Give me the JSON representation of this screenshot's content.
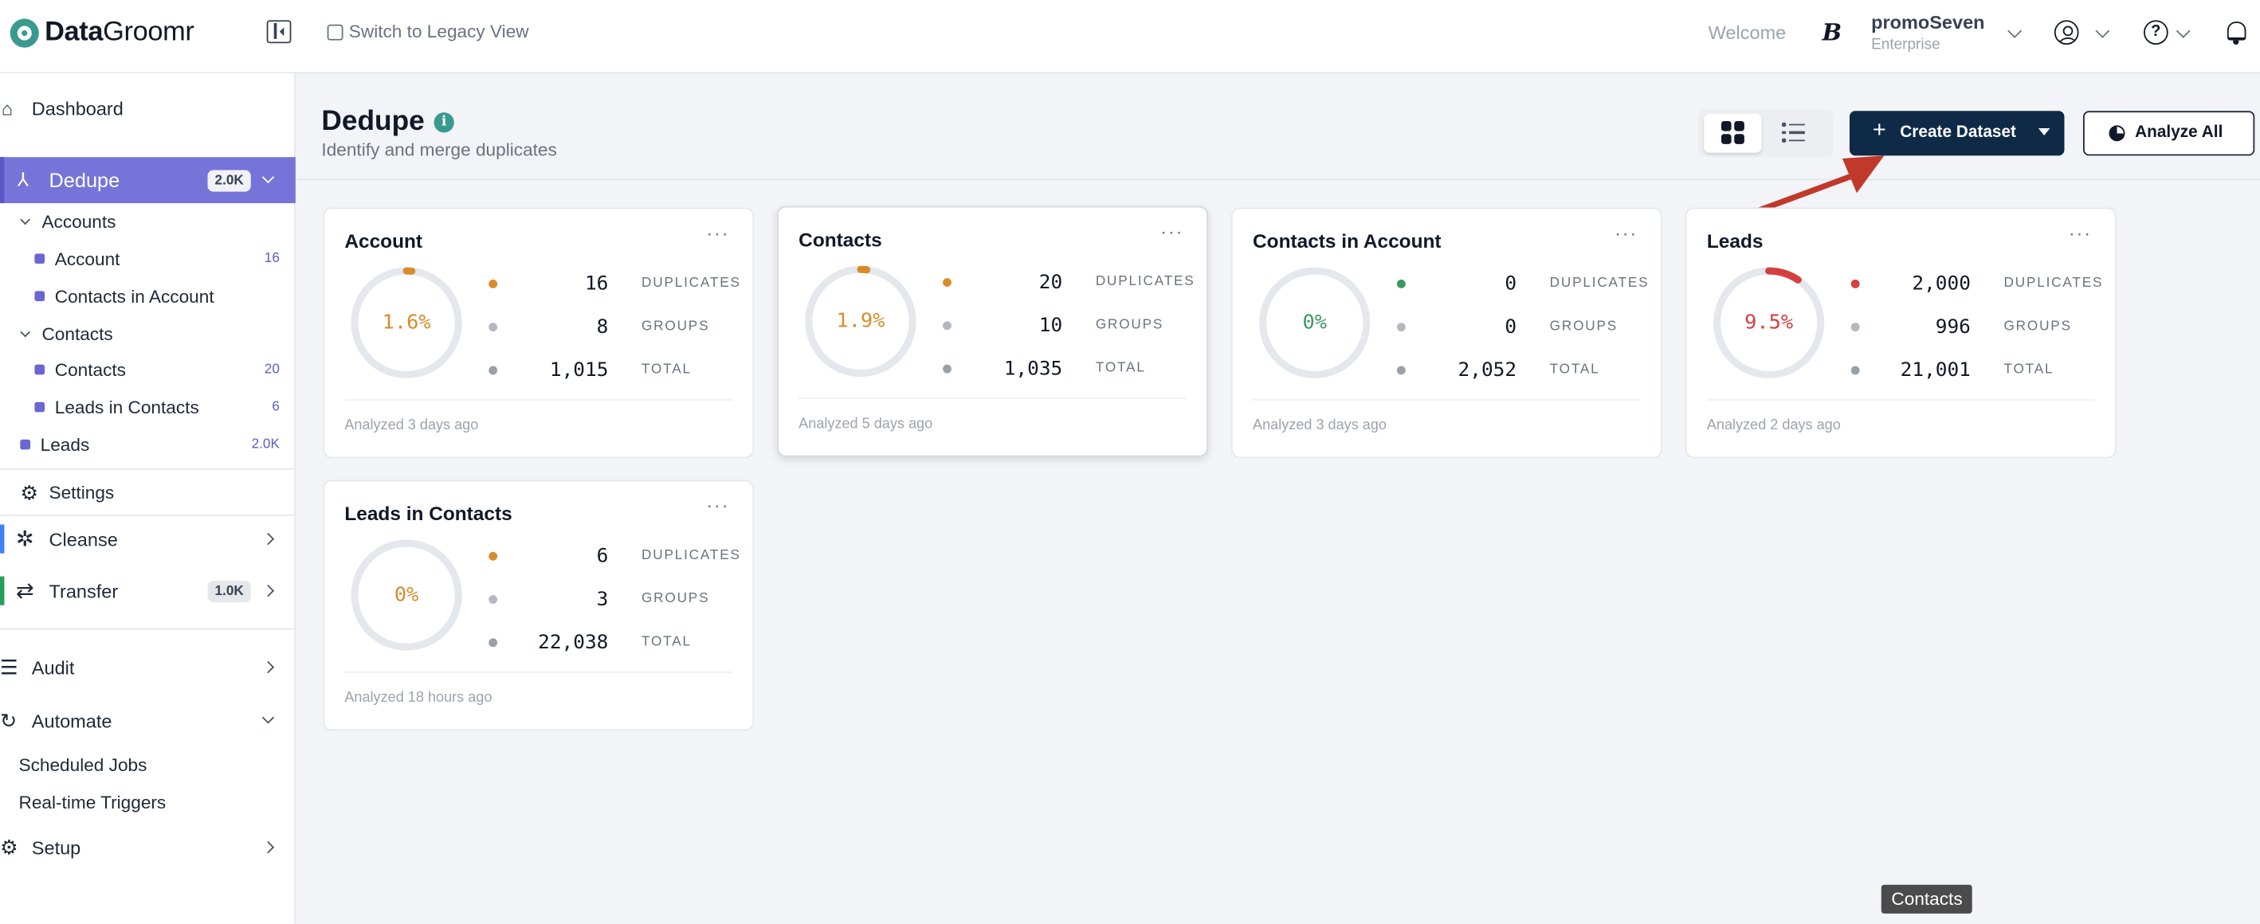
{
  "header": {
    "logo_bold": "Data",
    "logo_rest": "Groomr",
    "legacy_link": "Switch to Legacy View",
    "welcome": "Welcome",
    "org_name": "promoSeven",
    "org_tier": "Enterprise",
    "brand_glyph": "B"
  },
  "sidebar": {
    "dashboard": "Dashboard",
    "dedupe": {
      "label": "Dedupe",
      "badge": "2.0K"
    },
    "accounts_group": "Accounts",
    "account": {
      "label": "Account",
      "count": "16"
    },
    "contacts_in_account": {
      "label": "Contacts in Account"
    },
    "contacts_group": "Contacts",
    "contacts": {
      "label": "Contacts",
      "count": "20"
    },
    "leads_in_contacts": {
      "label": "Leads in Contacts",
      "count": "6"
    },
    "leads": {
      "label": "Leads",
      "count": "2.0K"
    },
    "settings": "Settings",
    "cleanse": "Cleanse",
    "transfer": {
      "label": "Transfer",
      "badge": "1.0K"
    },
    "audit": "Audit",
    "automate": "Automate",
    "scheduled_jobs": "Scheduled Jobs",
    "realtime_triggers": "Real-time Triggers",
    "setup": "Setup"
  },
  "page": {
    "title": "Dedupe",
    "subtitle": "Identify and merge duplicates",
    "info_glyph": "i",
    "create_button": "Create Dataset",
    "analyze_button": "Analyze All"
  },
  "labels": {
    "duplicates": "DUPLICATES",
    "groups": "GROUPS",
    "total": "TOTAL"
  },
  "cards": [
    {
      "title": "Account",
      "percent": "1.6%",
      "fraction": 0.016,
      "color": "#d98b2b",
      "duplicates": "16",
      "groups": "8",
      "total": "1,015",
      "analyzed": "Analyzed 3 days ago"
    },
    {
      "title": "Contacts",
      "percent": "1.9%",
      "fraction": 0.019,
      "color": "#d98b2b",
      "duplicates": "20",
      "groups": "10",
      "total": "1,035",
      "analyzed": "Analyzed 5 days ago"
    },
    {
      "title": "Contacts in Account",
      "percent": "0%",
      "fraction": 0,
      "color": "#3a9a5f",
      "duplicates": "0",
      "groups": "0",
      "total": "2,052",
      "analyzed": "Analyzed 3 days ago"
    },
    {
      "title": "Leads",
      "percent": "9.5%",
      "fraction": 0.095,
      "color": "#d63f3f",
      "duplicates": "2,000",
      "groups": "996",
      "total": "21,001",
      "analyzed": "Analyzed 2 days ago"
    },
    {
      "title": "Leads in Contacts",
      "percent": "0%",
      "fraction": 0,
      "color": "#d98b2b",
      "duplicates": "6",
      "groups": "3",
      "total": "22,038",
      "analyzed": "Analyzed 18 hours ago"
    }
  ],
  "tooltip": "Contacts",
  "colors": {
    "accent": "#7674d8",
    "primary_button": "#0e2a47",
    "brand": "#3a9a8f",
    "arrow": "#c0392b"
  }
}
